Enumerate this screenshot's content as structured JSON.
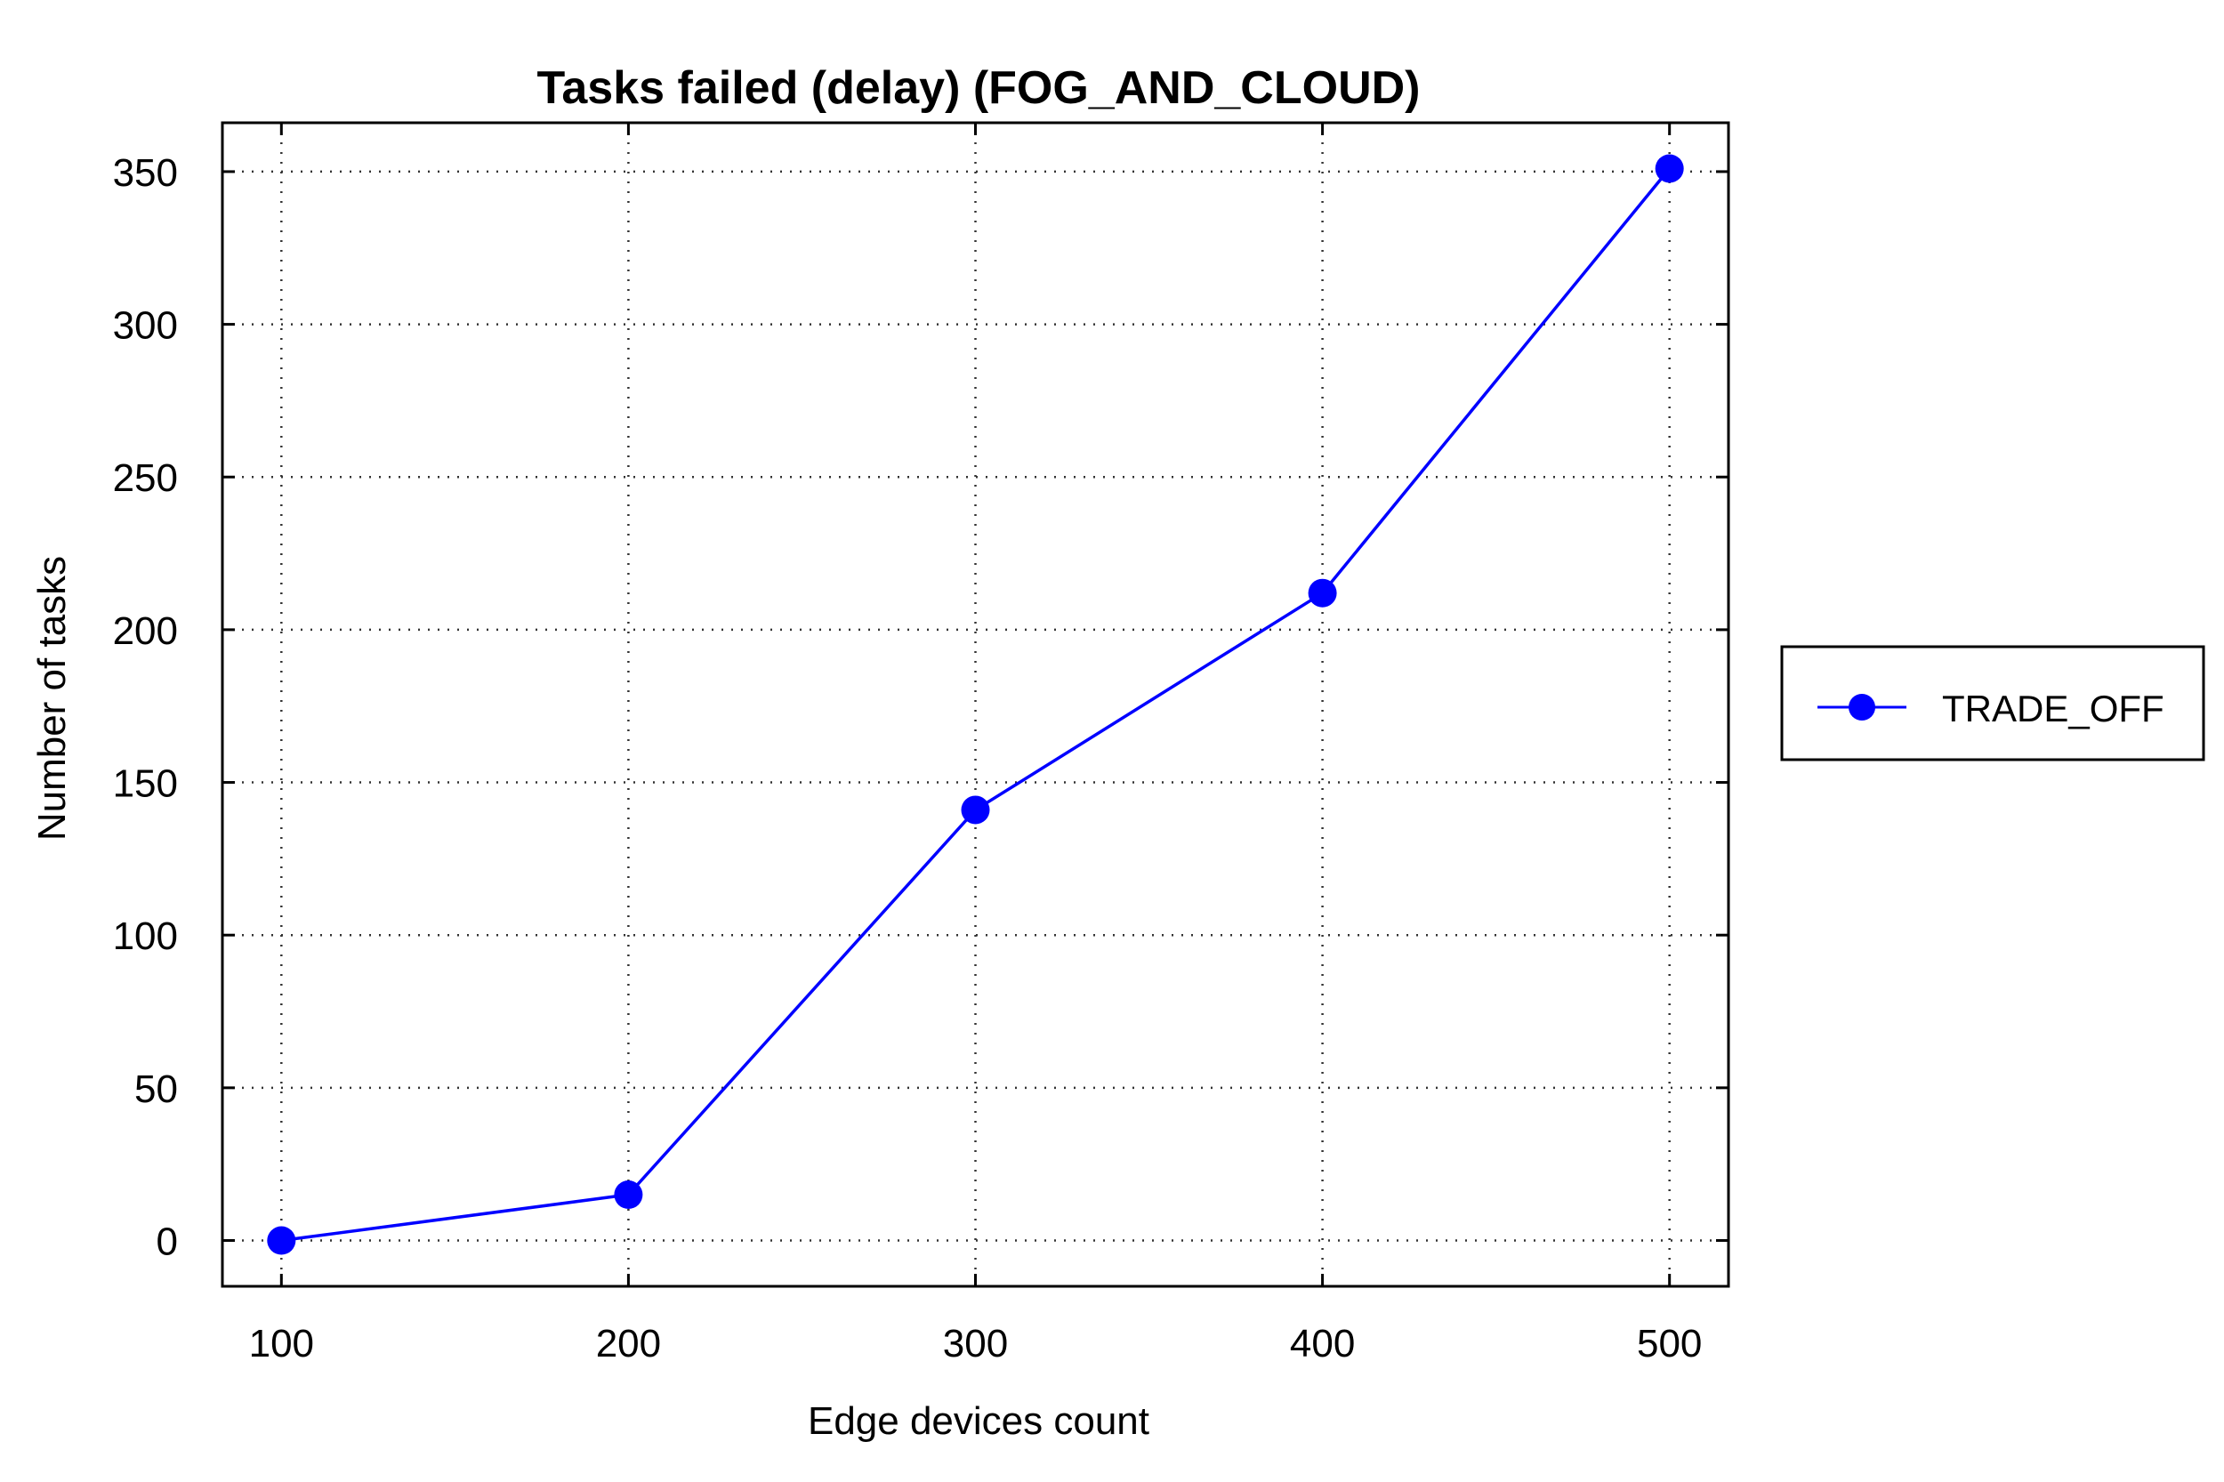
{
  "chart_data": {
    "type": "line",
    "title": "Tasks failed (delay) (FOG_AND_CLOUD)",
    "xlabel": "Edge devices count",
    "ylabel": "Number of tasks",
    "x": [
      100,
      200,
      300,
      400,
      500
    ],
    "xticks": [
      "100",
      "200",
      "300",
      "400",
      "500"
    ],
    "yticks": [
      "0",
      "50",
      "100",
      "150",
      "200",
      "250",
      "300",
      "350"
    ],
    "xlim": [
      83,
      517
    ],
    "ylim": [
      -15,
      366
    ],
    "grid": true,
    "legend_position": "outside-right",
    "series": [
      {
        "name": "TRADE_OFF",
        "color": "#0000ff",
        "marker": "circle",
        "values": [
          0,
          15,
          141,
          212,
          351
        ]
      }
    ]
  }
}
